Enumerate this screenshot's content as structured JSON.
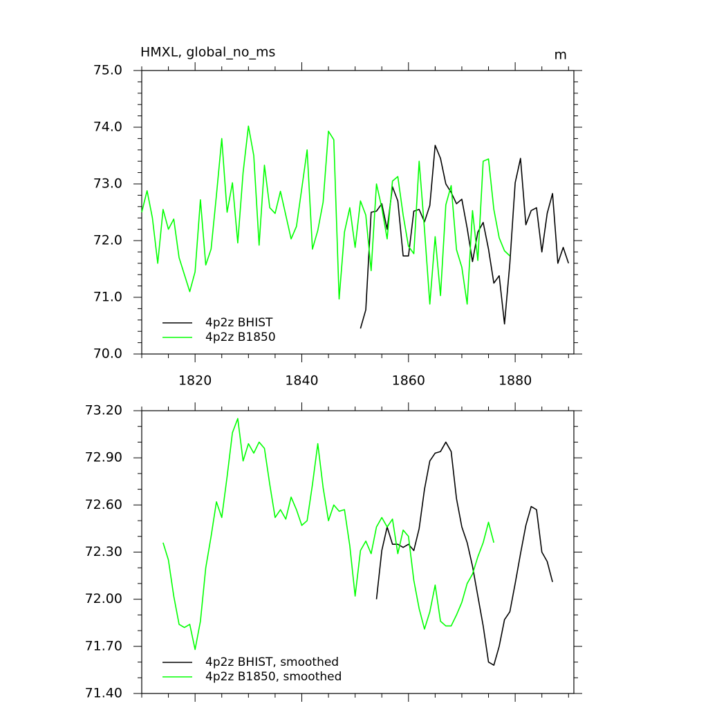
{
  "chart_data": [
    {
      "type": "line",
      "title": "HMXL, global_no_ms",
      "units": "m",
      "xlim": [
        1810,
        1891
      ],
      "xticks": [
        1820,
        1840,
        1860,
        1880
      ],
      "ylim": [
        70,
        75
      ],
      "yticks": [
        {
          "value": 70,
          "label": "70.0"
        },
        {
          "value": 71,
          "label": "71.0"
        },
        {
          "value": 72,
          "label": "72.0"
        },
        {
          "value": 73,
          "label": "73.0"
        },
        {
          "value": 74,
          "label": "74.0"
        },
        {
          "value": 75,
          "label": "75.0"
        }
      ],
      "series": [
        {
          "name": "4p2z BHIST",
          "color": "#000000",
          "x": [
            1851,
            1852,
            1853,
            1854,
            1855,
            1856,
            1857,
            1858,
            1859,
            1860,
            1861,
            1862,
            1863,
            1864,
            1865,
            1866,
            1867,
            1868,
            1869,
            1870,
            1871,
            1872,
            1873,
            1874,
            1875,
            1876,
            1877,
            1878,
            1879,
            1880,
            1881,
            1882,
            1883,
            1884,
            1885,
            1886,
            1887,
            1888,
            1889,
            1890
          ],
          "values": [
            70.45,
            70.78,
            72.5,
            72.52,
            72.65,
            72.2,
            72.95,
            72.7,
            71.73,
            71.73,
            72.52,
            72.55,
            72.33,
            72.62,
            73.68,
            73.45,
            73.0,
            72.85,
            72.65,
            72.73,
            72.22,
            71.63,
            72.15,
            72.32,
            71.85,
            71.25,
            71.38,
            70.53,
            71.6,
            73.02,
            73.45,
            72.28,
            72.53,
            72.58,
            71.8,
            72.48,
            72.83,
            71.6,
            71.88,
            71.6
          ]
        },
        {
          "name": "4p2z B1850",
          "color": "#00ff00",
          "x": [
            1810,
            1811,
            1812,
            1813,
            1814,
            1815,
            1816,
            1817,
            1818,
            1819,
            1820,
            1821,
            1822,
            1823,
            1824,
            1825,
            1826,
            1827,
            1828,
            1829,
            1830,
            1831,
            1832,
            1833,
            1834,
            1835,
            1836,
            1837,
            1838,
            1839,
            1840,
            1841,
            1842,
            1843,
            1844,
            1845,
            1846,
            1847,
            1848,
            1849,
            1850,
            1851,
            1852,
            1853,
            1854,
            1855,
            1856,
            1857,
            1858,
            1859,
            1860,
            1861,
            1862,
            1863,
            1864,
            1865,
            1866,
            1867,
            1868,
            1869,
            1870,
            1871,
            1872,
            1873,
            1874,
            1875,
            1876,
            1877,
            1878,
            1879
          ],
          "values": [
            72.5,
            72.88,
            72.4,
            71.6,
            72.55,
            72.2,
            72.38,
            71.7,
            71.4,
            71.1,
            71.45,
            72.72,
            71.57,
            71.85,
            72.8,
            73.8,
            72.5,
            73.02,
            71.96,
            73.2,
            74.02,
            73.5,
            71.92,
            73.33,
            72.58,
            72.48,
            72.87,
            72.45,
            72.03,
            72.25,
            72.92,
            73.6,
            71.85,
            72.18,
            72.68,
            73.93,
            73.78,
            70.97,
            72.15,
            72.58,
            71.88,
            72.7,
            72.45,
            71.47,
            73.0,
            72.58,
            72.03,
            73.05,
            73.13,
            72.45,
            71.9,
            71.77,
            73.4,
            72.2,
            70.88,
            72.07,
            71.03,
            72.63,
            72.97,
            71.84,
            71.53,
            70.88,
            72.53,
            71.65,
            73.4,
            73.44,
            72.55,
            72.05,
            71.82,
            71.73
          ]
        }
      ]
    },
    {
      "type": "line",
      "xlim": [
        1810,
        1891
      ],
      "ylim": [
        71.4,
        73.2
      ],
      "yticks": [
        {
          "value": 71.4,
          "label": "71.40"
        },
        {
          "value": 71.7,
          "label": "71.70"
        },
        {
          "value": 72.0,
          "label": "72.00"
        },
        {
          "value": 72.3,
          "label": "72.30"
        },
        {
          "value": 72.6,
          "label": "72.60"
        },
        {
          "value": 72.9,
          "label": "72.90"
        },
        {
          "value": 73.2,
          "label": "73.20"
        }
      ],
      "series": [
        {
          "name": "4p2z BHIST, smoothed",
          "color": "#000000",
          "x": [
            1854,
            1855,
            1856,
            1857,
            1858,
            1859,
            1860,
            1861,
            1862,
            1863,
            1864,
            1865,
            1866,
            1867,
            1868,
            1869,
            1870,
            1871,
            1872,
            1873,
            1874,
            1875,
            1876,
            1877,
            1878,
            1879,
            1880,
            1881,
            1882,
            1883,
            1884,
            1885,
            1886,
            1887
          ],
          "values": [
            72.0,
            72.31,
            72.46,
            72.35,
            72.35,
            72.33,
            72.35,
            72.31,
            72.45,
            72.7,
            72.88,
            72.93,
            72.94,
            73.0,
            72.94,
            72.64,
            72.46,
            72.36,
            72.21,
            72.02,
            71.83,
            71.6,
            71.58,
            71.7,
            71.87,
            71.92,
            72.1,
            72.29,
            72.47,
            72.59,
            72.57,
            72.3,
            72.24,
            72.11
          ]
        },
        {
          "name": "4p2z B1850, smoothed",
          "color": "#00ff00",
          "x": [
            1814,
            1815,
            1816,
            1817,
            1818,
            1819,
            1820,
            1821,
            1822,
            1823,
            1824,
            1825,
            1826,
            1827,
            1828,
            1829,
            1830,
            1831,
            1832,
            1833,
            1834,
            1835,
            1836,
            1837,
            1838,
            1839,
            1840,
            1841,
            1842,
            1843,
            1844,
            1845,
            1846,
            1847,
            1848,
            1849,
            1850,
            1851,
            1852,
            1853,
            1854,
            1855,
            1856,
            1857,
            1858,
            1859,
            1860,
            1861,
            1862,
            1863,
            1864,
            1865,
            1866,
            1867,
            1868,
            1869,
            1870,
            1871,
            1872,
            1873,
            1874,
            1875,
            1876
          ],
          "values": [
            72.36,
            72.25,
            72.02,
            71.84,
            71.82,
            71.84,
            71.68,
            71.86,
            72.2,
            72.4,
            72.62,
            72.52,
            72.78,
            73.06,
            73.15,
            72.88,
            72.99,
            72.93,
            73.0,
            72.96,
            72.73,
            72.52,
            72.57,
            72.51,
            72.65,
            72.57,
            72.47,
            72.5,
            72.73,
            72.99,
            72.71,
            72.5,
            72.6,
            72.56,
            72.57,
            72.34,
            72.02,
            72.31,
            72.37,
            72.29,
            72.46,
            72.52,
            72.46,
            72.51,
            72.29,
            72.44,
            72.4,
            72.12,
            71.94,
            71.81,
            71.92,
            72.09,
            71.86,
            71.83,
            71.83,
            71.9,
            71.98,
            72.1,
            72.16,
            72.27,
            72.36,
            72.49,
            72.36
          ]
        }
      ]
    }
  ]
}
